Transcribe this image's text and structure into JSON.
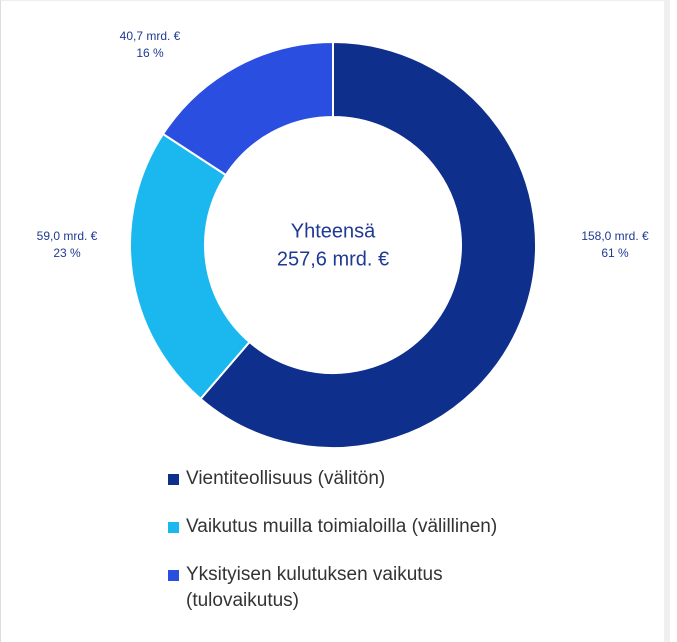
{
  "chart_data": {
    "type": "donut",
    "center_title": "Yhteensä",
    "total": 257.6,
    "total_label": "257,6 mrd. €",
    "series": [
      {
        "name": "Vientiteollisuus (välitön)",
        "color": "#0f2f8c",
        "value": 158.0,
        "value_label": "158,0 mrd. €",
        "percent": 61,
        "percent_label": "61 %"
      },
      {
        "name": "Vaikutus muilla toimialoilla (välillinen)",
        "color": "#1ab8ef",
        "value": 59.0,
        "value_label": "59,0 mrd. €",
        "percent": 23,
        "percent_label": "23 %"
      },
      {
        "name": "Yksityisen kulutuksen vaikutus (tulovaikutus)",
        "color": "#2a4ee0",
        "value": 40.7,
        "value_label": "40,7 mrd. €",
        "percent": 16,
        "percent_label": "16 %"
      }
    ],
    "legend": "bottom"
  }
}
